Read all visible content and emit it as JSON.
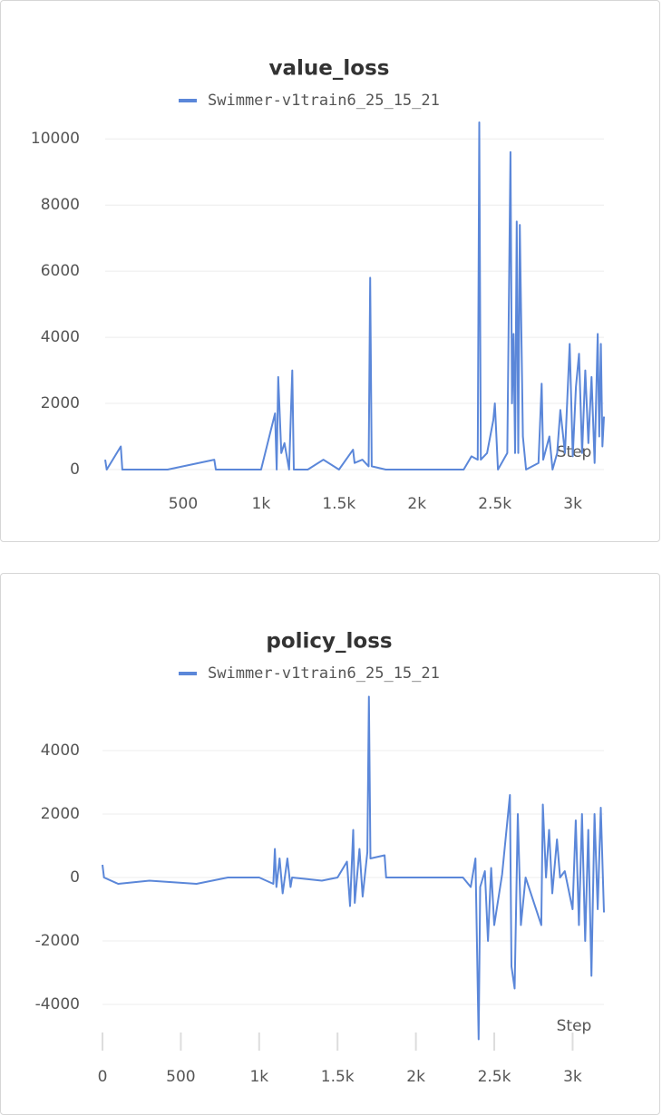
{
  "chart_data": [
    {
      "type": "line",
      "title": "value_loss",
      "xlabel": "Step",
      "x": [
        0,
        10,
        100,
        110,
        400,
        700,
        710,
        1000,
        1090,
        1100,
        1110,
        1130,
        1150,
        1180,
        1200,
        1210,
        1300,
        1400,
        1500,
        1590,
        1600,
        1650,
        1690,
        1700,
        1710,
        1800,
        2000,
        2300,
        2350,
        2390,
        2400,
        2410,
        2450,
        2490,
        2500,
        2520,
        2580,
        2600,
        2610,
        2620,
        2630,
        2640,
        2650,
        2660,
        2680,
        2700,
        2780,
        2800,
        2810,
        2850,
        2870,
        2900,
        2920,
        2950,
        2980,
        3000,
        3020,
        3040,
        3060,
        3080,
        3100,
        3120,
        3140,
        3160,
        3170,
        3180,
        3190,
        3200
      ],
      "series": [
        {
          "name": "Swimmer-v1train6_25_15_21",
          "color": "#5b87d9",
          "values": [
            300,
            0,
            700,
            0,
            0,
            300,
            0,
            0,
            1700,
            0,
            2800,
            500,
            800,
            0,
            3000,
            0,
            0,
            300,
            0,
            600,
            200,
            300,
            100,
            5800,
            100,
            0,
            0,
            0,
            400,
            300,
            10500,
            300,
            500,
            1500,
            2000,
            0,
            500,
            9600,
            2000,
            4100,
            500,
            7500,
            500,
            7400,
            1000,
            0,
            200,
            2600,
            300,
            1000,
            0,
            500,
            1800,
            500,
            3800,
            400,
            2500,
            3500,
            500,
            3000,
            800,
            2800,
            200,
            4100,
            1000,
            3800,
            700,
            1600
          ]
        }
      ],
      "xlim": [
        0,
        3200
      ],
      "ylim": [
        0,
        10500
      ],
      "xticks": [
        500,
        {
          "value": 1000,
          "label": "1k"
        },
        {
          "value": 1500,
          "label": "1.5k"
        },
        {
          "value": 2000,
          "label": "2k"
        },
        {
          "value": 2500,
          "label": "2.5k"
        },
        {
          "value": 3000,
          "label": "3k"
        }
      ],
      "yticks": [
        0,
        2000,
        4000,
        6000,
        8000,
        10000
      ],
      "grid": true
    },
    {
      "type": "line",
      "title": "policy_loss",
      "xlabel": "Step",
      "x": [
        0,
        10,
        100,
        300,
        600,
        800,
        1000,
        1090,
        1100,
        1110,
        1130,
        1150,
        1180,
        1200,
        1210,
        1400,
        1500,
        1560,
        1580,
        1600,
        1610,
        1640,
        1660,
        1690,
        1700,
        1710,
        1800,
        1810,
        2000,
        2300,
        2350,
        2380,
        2400,
        2410,
        2440,
        2460,
        2480,
        2500,
        2550,
        2600,
        2610,
        2630,
        2650,
        2670,
        2700,
        2800,
        2810,
        2830,
        2850,
        2870,
        2900,
        2920,
        2950,
        3000,
        3020,
        3040,
        3060,
        3080,
        3100,
        3120,
        3140,
        3160,
        3180,
        3200
      ],
      "series": [
        {
          "name": "Swimmer-v1train6_25_15_21",
          "color": "#5b87d9",
          "values": [
            400,
            0,
            -200,
            -100,
            -200,
            0,
            0,
            -200,
            900,
            -300,
            600,
            -500,
            600,
            -300,
            0,
            -100,
            0,
            500,
            -900,
            1500,
            -800,
            900,
            -600,
            800,
            5700,
            600,
            700,
            0,
            0,
            0,
            -300,
            600,
            -5100,
            -300,
            200,
            -2000,
            300,
            -1500,
            100,
            2600,
            -2800,
            -3500,
            2000,
            -1500,
            0,
            -1500,
            2300,
            0,
            1500,
            -500,
            1200,
            0,
            200,
            -1000,
            1800,
            -1500,
            2000,
            -2000,
            1500,
            -3100,
            2000,
            -1000,
            2200,
            -1100
          ]
        }
      ],
      "xlim": [
        0,
        3200
      ],
      "ylim": [
        -5200,
        5800
      ],
      "xticks": [
        0,
        500,
        {
          "value": 1000,
          "label": "1k"
        },
        {
          "value": 1500,
          "label": "1.5k"
        },
        {
          "value": 2000,
          "label": "2k"
        },
        {
          "value": 2500,
          "label": "2.5k"
        },
        {
          "value": 3000,
          "label": "3k"
        }
      ],
      "yticks": [
        -4000,
        -2000,
        0,
        2000,
        4000
      ],
      "grid": true
    }
  ]
}
